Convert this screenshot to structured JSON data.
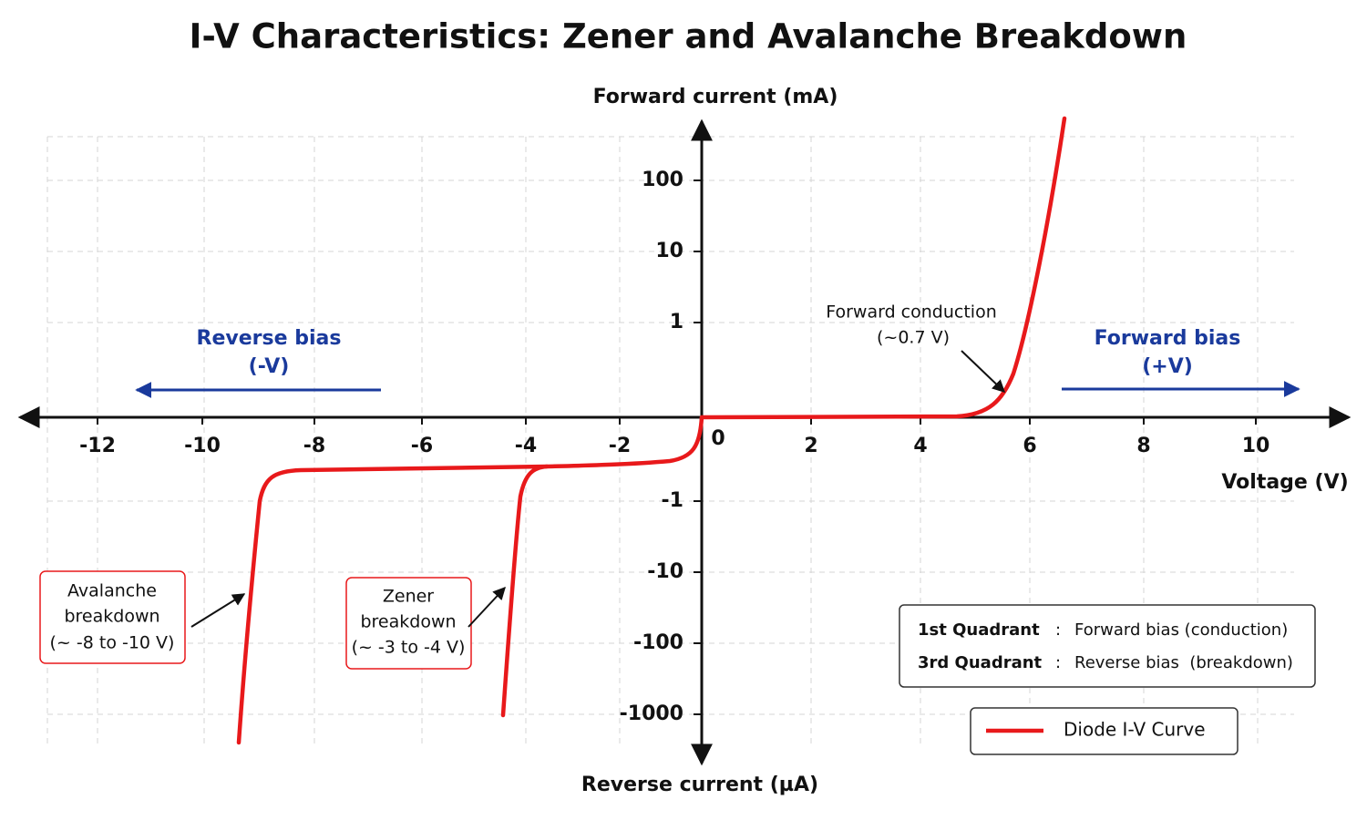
{
  "header": {
    "title": "I-V Characteristics: Zener and Avalanche Breakdown"
  },
  "axes": {
    "y_top_label": "Forward current (mA)",
    "y_bottom_label": "Reverse current (µA)",
    "x_label": "Voltage (V)",
    "x_tick_labels": [
      "-12",
      "-10",
      "-8",
      "-6",
      "-4",
      "-2",
      "0",
      "2",
      "4",
      "6",
      "8",
      "10"
    ],
    "y_tick_labels": [
      "100",
      "10",
      "1",
      "-1",
      "-10",
      "-100",
      "-1000"
    ]
  },
  "regions": {
    "reverse": [
      "Reverse bias",
      "(-V)"
    ],
    "forward": [
      "Forward bias",
      "(+V)"
    ]
  },
  "annotations": {
    "forward_conduction": [
      "Forward conduction",
      "(~0.7 V)"
    ],
    "avalanche": [
      "Avalanche",
      "breakdown",
      "(~ -8 to -10 V)"
    ],
    "zener": [
      "Zener",
      "breakdown",
      "(~ -3 to -4 V)"
    ]
  },
  "quadrants": {
    "rows": [
      [
        "1st Quadrant",
        ":",
        "Forward bias (conduction)"
      ],
      [
        "3rd Quadrant",
        ":",
        "Reverse bias  (breakdown)"
      ]
    ]
  },
  "legend": {
    "label": "Diode I-V Curve"
  }
}
